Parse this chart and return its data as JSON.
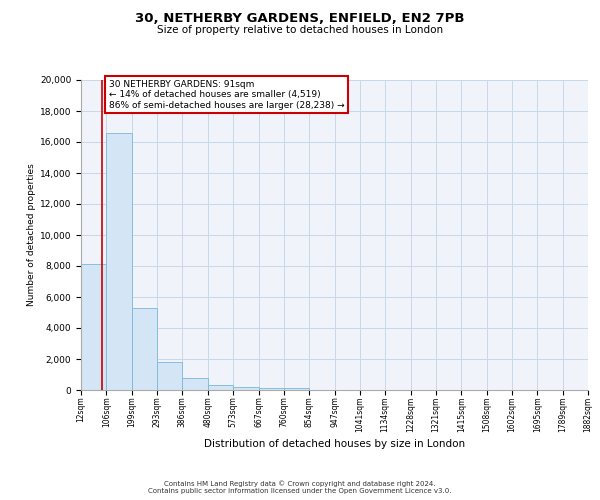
{
  "title": "30, NETHERBY GARDENS, ENFIELD, EN2 7PB",
  "subtitle": "Size of property relative to detached houses in London",
  "xlabel": "Distribution of detached houses by size in London",
  "ylabel": "Number of detached properties",
  "bar_color": "#d4e6f5",
  "bar_edge_color": "#7ab8d8",
  "grid_color": "#c8d8e8",
  "annotation_line_color": "#cc0000",
  "annotation_text": "30 NETHERBY GARDENS: 91sqm\n← 14% of detached houses are smaller (4,519)\n86% of semi-detached houses are larger (28,238) →",
  "property_size": 91,
  "footer_line1": "Contains HM Land Registry data © Crown copyright and database right 2024.",
  "footer_line2": "Contains public sector information licensed under the Open Government Licence v3.0.",
  "bin_edges": [
    12,
    106,
    199,
    293,
    386,
    480,
    573,
    667,
    760,
    854,
    947,
    1041,
    1134,
    1228,
    1321,
    1415,
    1508,
    1602,
    1695,
    1789,
    1882
  ],
  "bar_heights": [
    8100,
    16600,
    5300,
    1800,
    750,
    350,
    200,
    150,
    100,
    0,
    0,
    0,
    0,
    0,
    0,
    0,
    0,
    0,
    0,
    0
  ],
  "ylim": [
    0,
    20000
  ],
  "yticks": [
    0,
    2000,
    4000,
    6000,
    8000,
    10000,
    12000,
    14000,
    16000,
    18000,
    20000
  ],
  "plot_bg_color": "#f0f4fa",
  "fig_bg_color": "#ffffff"
}
